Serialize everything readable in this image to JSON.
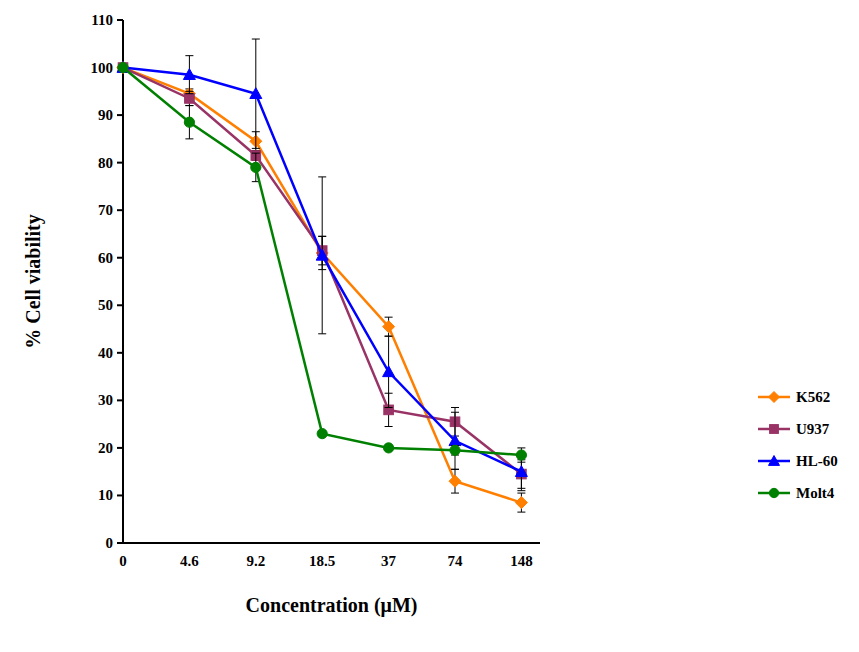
{
  "chart_data": {
    "type": "line",
    "x_label": "Concentration (μM)",
    "y_label": "% Cell viability",
    "categories": [
      "0",
      "4.6",
      "9.2",
      "18.5",
      "37",
      "74",
      "148"
    ],
    "series": [
      {
        "name": "K562",
        "color": "#ff7f00",
        "marker": "diamond",
        "values": [
          100,
          94.5,
          84.5,
          61,
          45.5,
          13,
          8.5
        ],
        "errors": [
          0,
          1,
          2,
          3.5,
          2,
          2.5,
          2
        ]
      },
      {
        "name": "U937",
        "color": "#993366",
        "marker": "square",
        "values": [
          100,
          93.5,
          81.5,
          61.5,
          28,
          25.5,
          14.5
        ],
        "errors": [
          0,
          1.5,
          1,
          3,
          3.5,
          3,
          3
        ]
      },
      {
        "name": "HL-60",
        "color": "#0000ff",
        "marker": "triangle",
        "values": [
          100,
          98.5,
          94.5,
          60.5,
          36,
          21.5,
          15
        ],
        "errors": [
          0,
          4,
          11.5,
          16.5,
          7.5,
          6,
          4
        ]
      },
      {
        "name": "Molt4",
        "color": "#008000",
        "marker": "circle",
        "values": [
          100,
          88.5,
          79,
          23,
          20,
          19.5,
          18.5
        ],
        "errors": [
          0,
          3.5,
          3,
          0.5,
          0.5,
          1,
          1.5
        ]
      }
    ],
    "ylim": [
      0,
      110
    ],
    "yticks": [
      0,
      10,
      20,
      30,
      40,
      50,
      60,
      70,
      80,
      90,
      100,
      110
    ],
    "grid": false,
    "legend": "right"
  }
}
